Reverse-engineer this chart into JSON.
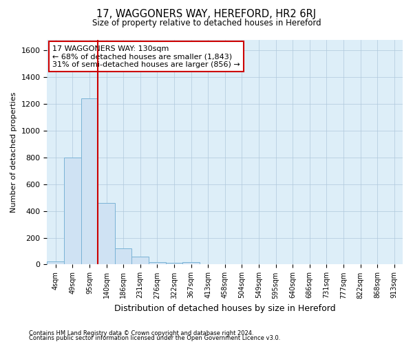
{
  "title": "17, WAGGONERS WAY, HEREFORD, HR2 6RJ",
  "subtitle": "Size of property relative to detached houses in Hereford",
  "xlabel": "Distribution of detached houses by size in Hereford",
  "ylabel": "Number of detached properties",
  "footnote1": "Contains HM Land Registry data © Crown copyright and database right 2024.",
  "footnote2": "Contains public sector information licensed under the Open Government Licence v3.0.",
  "bar_color": "#cfe2f3",
  "bar_edge_color": "#7ab3d6",
  "grid_color": "#b0c8dc",
  "background_color": "#ddeef8",
  "annotation_box_color": "#cc0000",
  "vline_color": "#cc0000",
  "categories": [
    "4sqm",
    "49sqm",
    "95sqm",
    "140sqm",
    "186sqm",
    "231sqm",
    "276sqm",
    "322sqm",
    "367sqm",
    "413sqm",
    "458sqm",
    "504sqm",
    "549sqm",
    "595sqm",
    "640sqm",
    "686sqm",
    "731sqm",
    "777sqm",
    "822sqm",
    "868sqm",
    "913sqm"
  ],
  "values": [
    25,
    800,
    1240,
    460,
    120,
    60,
    20,
    10,
    18,
    0,
    0,
    0,
    0,
    0,
    0,
    0,
    0,
    0,
    0,
    0,
    0
  ],
  "ylim": [
    0,
    1680
  ],
  "yticks": [
    0,
    200,
    400,
    600,
    800,
    1000,
    1200,
    1400,
    1600
  ],
  "property_label": "17 WAGGONERS WAY: 130sqm",
  "annotation_line1": "← 68% of detached houses are smaller (1,843)",
  "annotation_line2": "31% of semi-detached houses are larger (856) →",
  "vline_position": 2.5
}
